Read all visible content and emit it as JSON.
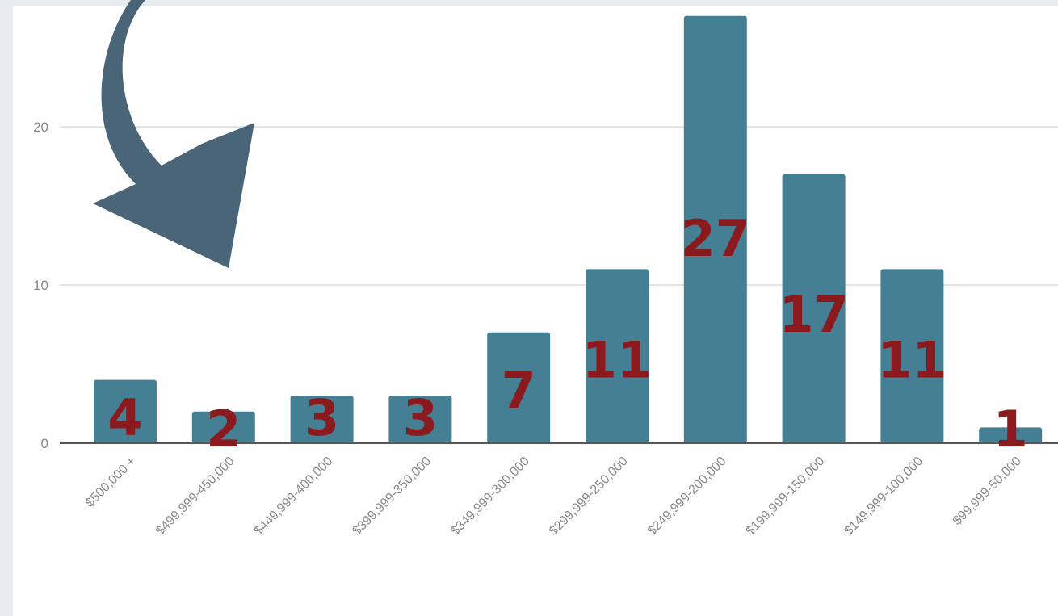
{
  "chart_data": {
    "type": "bar",
    "categories": [
      "$500,000 +",
      "$499,999-450,000",
      "$449,999-400,000",
      "$399,999-350,000",
      "$349,999-300,000",
      "$299,999-250,000",
      "$249,999-200,000",
      "$199,999-150,000",
      "$149,999-100,000",
      "$99,999-50,000"
    ],
    "values": [
      4,
      2,
      3,
      3,
      7,
      11,
      27,
      17,
      11,
      1
    ],
    "data_labels": [
      "4",
      "2",
      "3",
      "3",
      "7",
      "11",
      "27",
      "17",
      "11",
      "1"
    ],
    "title": "",
    "xlabel": "",
    "ylabel": "",
    "ylim": [
      0,
      27
    ],
    "yticks": [
      0,
      10,
      20
    ],
    "grid": true,
    "colors": {
      "bar": "#457f93",
      "data_label": "#8b1a1f",
      "arrow": "#4a6478",
      "gridline": "#dcdcdc",
      "axis": "#555555"
    }
  },
  "annotations": {
    "arrow_icon": "curved-arrow-down-left"
  }
}
